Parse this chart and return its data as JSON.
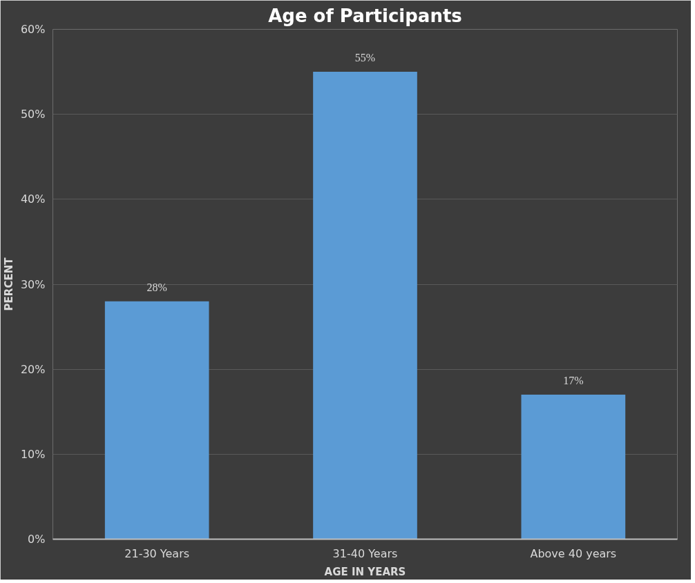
{
  "chart_data": {
    "type": "bar",
    "title": "Age of Participants",
    "xlabel": "AGE IN YEARS",
    "ylabel": "PERCENT",
    "categories": [
      "21-30 Years",
      "31-40 Years",
      "Above 40 years"
    ],
    "values": [
      28,
      55,
      17
    ],
    "color": "#5b9bd5",
    "value_labels": [
      "28%",
      "55%",
      "17%"
    ],
    "ylim": [
      0,
      60
    ],
    "yticks": [
      {
        "value": 0,
        "label": "0%"
      },
      {
        "value": 10,
        "label": "10%"
      },
      {
        "value": 20,
        "label": "20%"
      },
      {
        "value": 30,
        "label": "30%"
      },
      {
        "value": 40,
        "label": "40%"
      },
      {
        "value": 50,
        "label": "50%"
      },
      {
        "value": 60,
        "label": "60%"
      }
    ],
    "grid": "y"
  }
}
